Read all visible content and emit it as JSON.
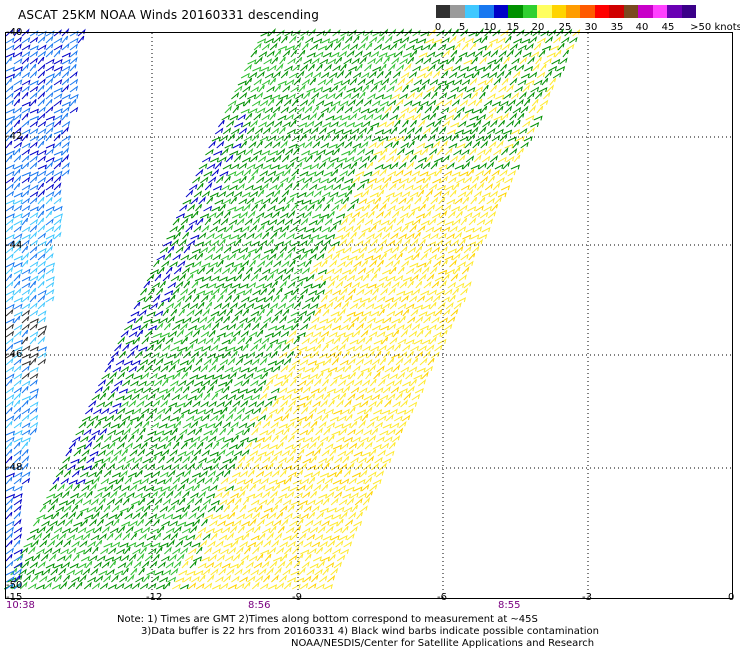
{
  "title": "ASCAT 25KM NOAA Winds 20160331 descending",
  "legend": {
    "labels": [
      "0",
      "5",
      "10",
      "15",
      "20",
      "25",
      "30",
      "35",
      "40",
      "45",
      ">50 knots"
    ],
    "colors": [
      "#303030",
      "#9a9a9a",
      "#40c8ff",
      "#1878f0",
      "#0000c8",
      "#009000",
      "#30d030",
      "#ffff60",
      "#ffd400",
      "#ff9c00",
      "#ff5a00",
      "#ff0000",
      "#d00000",
      "#7a4a20",
      "#c800c8",
      "#ff40ff",
      "#6a00b4",
      "#3a0088"
    ]
  },
  "axes": {
    "lat_labels": [
      "-40",
      "-42",
      "-44",
      "-46",
      "-48",
      "-50"
    ],
    "lon_labels": [
      "-15",
      "-12",
      "-9",
      "-6",
      "-3",
      "0"
    ]
  },
  "times": [
    "10:38",
    "8:56",
    "8:55"
  ],
  "notes": {
    "line1": "Note: 1) Times are GMT 2)Times along bottom correspond to measurement at ~45S",
    "line2": "3)Data buffer is 22 hrs from 20160331 4) Black wind barbs indicate possible contamination",
    "line3": "NOAA/NESDIS/Center for Satellite Applications and Research"
  }
}
